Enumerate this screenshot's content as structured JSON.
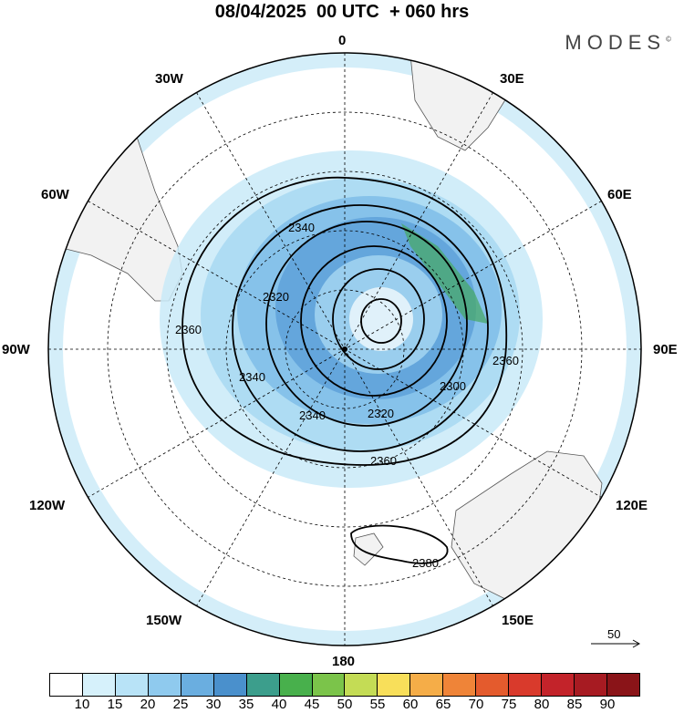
{
  "header": {
    "title": "08/04/2025  00 UTC  + 060 hrs",
    "brand": "MODES",
    "brand_mark": "©"
  },
  "map": {
    "projection": "south-polar-stereographic",
    "longitude_labels": {
      "top": "0",
      "top_left": "30W",
      "top_right": "30E",
      "upper_left": "60W",
      "upper_right": "60E",
      "left": "90W",
      "right": "90E",
      "lower_left": "120W",
      "lower_right": "120E",
      "bottom_left": "150W",
      "bottom_right": "150E",
      "bottom": "180"
    },
    "contour_labels": [
      "2360",
      "2340",
      "2320",
      "2340",
      "2340",
      "2320",
      "2300",
      "2360",
      "2360",
      "2380"
    ],
    "reference_vector": "50",
    "colors": {
      "land": "#f2f2f2",
      "ocean": "#ffffff",
      "contour": "#000000",
      "grid": "#000000"
    }
  },
  "colorbar": {
    "ticks": [
      "10",
      "15",
      "20",
      "25",
      "30",
      "35",
      "40",
      "45",
      "50",
      "55",
      "60",
      "65",
      "70",
      "75",
      "80",
      "85",
      "90"
    ],
    "colors": [
      "#ffffff",
      "#d6f1fb",
      "#b8e3f7",
      "#8fcaee",
      "#6aaee0",
      "#4a90cc",
      "#3c9e8c",
      "#48b04c",
      "#7bc44a",
      "#c4dc55",
      "#f8df5a",
      "#f5ad48",
      "#ef8438",
      "#e45b2d",
      "#d93a2c",
      "#c3232a",
      "#a71b22",
      "#8a1418"
    ]
  }
}
